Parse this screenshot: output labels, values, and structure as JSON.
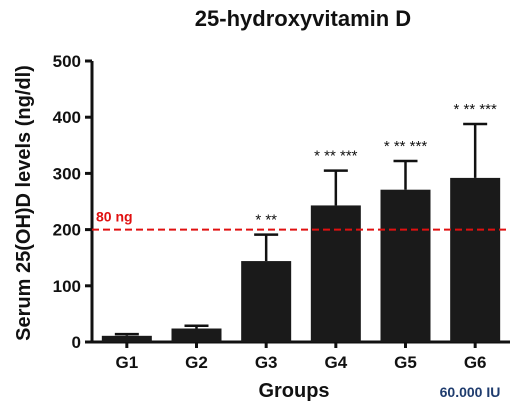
{
  "chart_data": {
    "type": "bar",
    "title": "25-hydroxyvitamin D",
    "xlabel": "Groups",
    "ylabel": "Serum 25(OH)D levels (ng/dl)",
    "categories": [
      "G1",
      "G2",
      "G3",
      "G4",
      "G5",
      "G6"
    ],
    "values": [
      11,
      24,
      144,
      243,
      271,
      292
    ],
    "error": [
      3,
      5,
      47,
      62,
      51,
      96
    ],
    "annotations": [
      "",
      "",
      "* **",
      "* ** ***",
      "* ** ***",
      "* ** ***"
    ],
    "ylim": [
      0,
      500
    ],
    "yticks": [
      "0",
      "100",
      "200",
      "300",
      "400",
      "500"
    ],
    "reference_line": {
      "value": 200,
      "label": "80 ng",
      "color": "#e01010",
      "style": "dashed"
    },
    "bar_color": "#1a1a1a",
    "footnote": "60.000 IU",
    "footnote_color": "#1f3c6e",
    "grid": false,
    "legend": "none"
  }
}
